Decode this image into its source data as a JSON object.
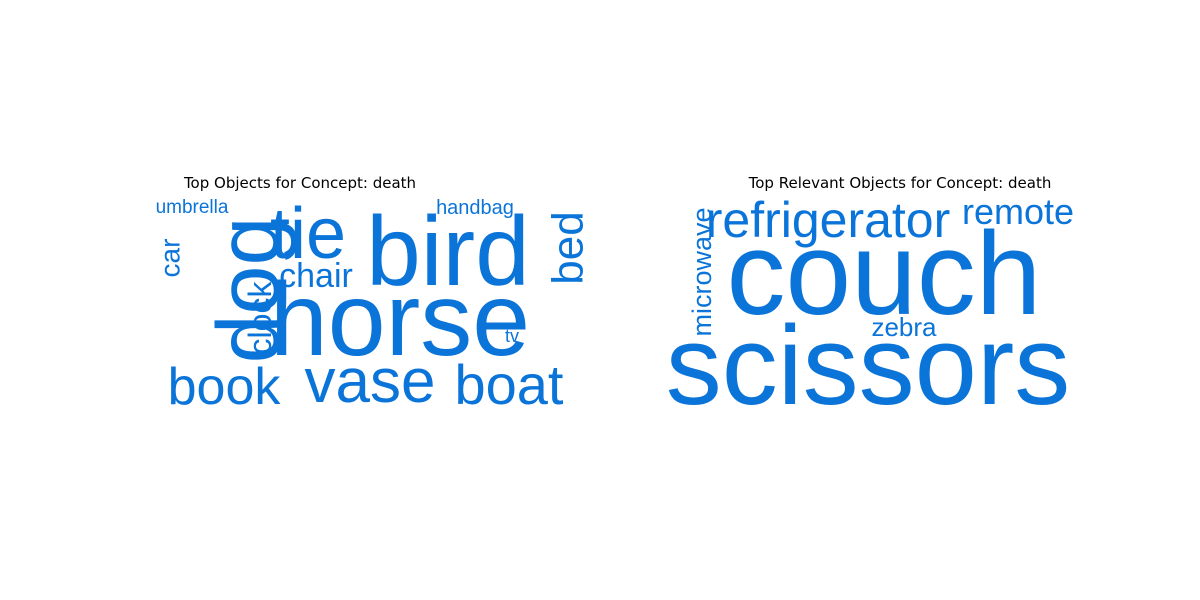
{
  "colors": {
    "word": "#0b74d9",
    "title": "#000000",
    "background": "#ffffff"
  },
  "chart_data": [
    {
      "type": "wordcloud",
      "title": "Top Objects for Concept: death",
      "words": [
        {
          "text": "horse",
          "weight": 100
        },
        {
          "text": "bird",
          "weight": 78
        },
        {
          "text": "dog",
          "weight": 64
        },
        {
          "text": "tie",
          "weight": 58
        },
        {
          "text": "vase",
          "weight": 52
        },
        {
          "text": "boat",
          "weight": 48
        },
        {
          "text": "book",
          "weight": 44
        },
        {
          "text": "bed",
          "weight": 34
        },
        {
          "text": "chair",
          "weight": 32
        },
        {
          "text": "clock",
          "weight": 28
        },
        {
          "text": "car",
          "weight": 25
        },
        {
          "text": "handbag",
          "weight": 19
        },
        {
          "text": "umbrella",
          "weight": 18
        },
        {
          "text": "tv",
          "weight": 16
        }
      ]
    },
    {
      "type": "wordcloud",
      "title": "Top Relevant Objects for Concept: death",
      "words": [
        {
          "text": "couch",
          "weight": 100
        },
        {
          "text": "scissors",
          "weight": 96
        },
        {
          "text": "refrigerator",
          "weight": 46
        },
        {
          "text": "remote",
          "weight": 36
        },
        {
          "text": "microwave",
          "weight": 28
        },
        {
          "text": "zebra",
          "weight": 24
        }
      ]
    }
  ]
}
